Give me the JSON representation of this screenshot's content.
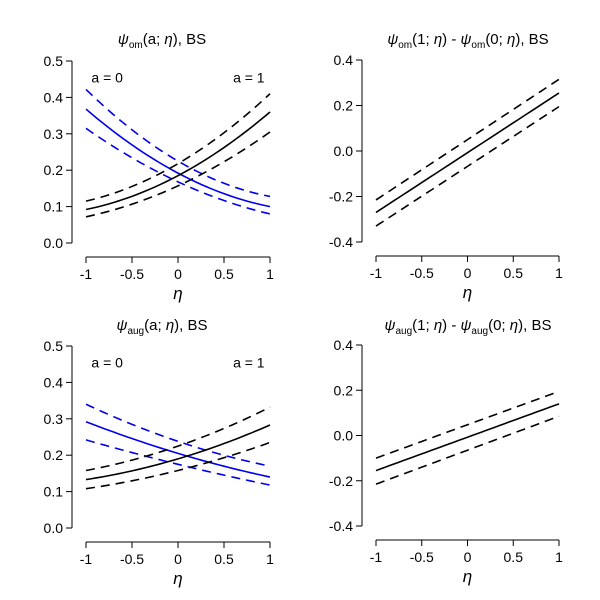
{
  "chart_data": [
    {
      "type": "line",
      "title": {
        "psi": "ψ",
        "sub": "om",
        "args": "(a; ",
        "eta": "η",
        "close": "), BS"
      },
      "xlabel": "η",
      "ylabel": "",
      "xlim": [
        -1,
        1
      ],
      "ylim": [
        0,
        0.5
      ],
      "xticks": [
        -1,
        -0.5,
        0,
        0.5,
        1
      ],
      "xtick_labels": [
        "-1",
        "-0.5",
        "0",
        "0.5",
        "1"
      ],
      "yticks": [
        0,
        0.1,
        0.2,
        0.3,
        0.4,
        0.5
      ],
      "ytick_labels": [
        "0.0",
        "0.1",
        "0.2",
        "0.3",
        "0.4",
        "0.5"
      ],
      "annotations": [
        {
          "text": "a = 0",
          "x": -0.77,
          "y": 0.455
        },
        {
          "text": "a = 1",
          "x": 0.77,
          "y": 0.455
        }
      ],
      "series": [
        {
          "name": "a=0 estimate",
          "color": "#0000ee",
          "style": "solid",
          "x": [
            -1,
            0,
            1
          ],
          "y": [
            0.368,
            0.192,
            0.1
          ]
        },
        {
          "name": "a=0 upper",
          "color": "#0000ee",
          "style": "dashed",
          "x": [
            -1,
            0,
            1
          ],
          "y": [
            0.422,
            0.225,
            0.128
          ]
        },
        {
          "name": "a=0 lower",
          "color": "#0000ee",
          "style": "dashed",
          "x": [
            -1,
            0,
            1
          ],
          "y": [
            0.315,
            0.168,
            0.08
          ]
        },
        {
          "name": "a=1 estimate",
          "color": "#000000",
          "style": "solid",
          "x": [
            -1,
            0,
            1
          ],
          "y": [
            0.092,
            0.185,
            0.36
          ]
        },
        {
          "name": "a=1 upper",
          "color": "#000000",
          "style": "dashed",
          "x": [
            -1,
            0,
            1
          ],
          "y": [
            0.115,
            0.218,
            0.41
          ]
        },
        {
          "name": "a=1 lower",
          "color": "#000000",
          "style": "dashed",
          "x": [
            -1,
            0,
            1
          ],
          "y": [
            0.072,
            0.157,
            0.305
          ]
        }
      ]
    },
    {
      "type": "line",
      "title": {
        "psi": "ψ",
        "sub": "om",
        "args": "(1; ",
        "eta": "η",
        "mid": ") - ",
        "psi2": "ψ",
        "sub2": "om",
        "args2": "(0; ",
        "eta2": "η",
        "close": "), BS"
      },
      "xlabel": "η",
      "ylabel": "",
      "xlim": [
        -1,
        1
      ],
      "ylim": [
        -0.4,
        0.4
      ],
      "xticks": [
        -1,
        -0.5,
        0,
        0.5,
        1
      ],
      "xtick_labels": [
        "-1",
        "-0.5",
        "0",
        "0.5",
        "1"
      ],
      "yticks": [
        -0.4,
        -0.2,
        0,
        0.2,
        0.4
      ],
      "ytick_labels": [
        "-0.4",
        "-0.2",
        "0.0",
        "0.2",
        "0.4"
      ],
      "annotations": [],
      "series": [
        {
          "name": "estimate",
          "color": "#000000",
          "style": "solid",
          "x": [
            -1,
            1
          ],
          "y": [
            -0.27,
            0.255
          ]
        },
        {
          "name": "upper",
          "color": "#000000",
          "style": "dashed",
          "x": [
            -1,
            1
          ],
          "y": [
            -0.215,
            0.315
          ]
        },
        {
          "name": "lower",
          "color": "#000000",
          "style": "dashed",
          "x": [
            -1,
            1
          ],
          "y": [
            -0.33,
            0.195
          ]
        }
      ]
    },
    {
      "type": "line",
      "title": {
        "psi": "ψ",
        "sub": "aug",
        "args": "(a; ",
        "eta": "η",
        "close": "), BS"
      },
      "xlabel": "η",
      "ylabel": "",
      "xlim": [
        -1,
        1
      ],
      "ylim": [
        0,
        0.5
      ],
      "xticks": [
        -1,
        -0.5,
        0,
        0.5,
        1
      ],
      "xtick_labels": [
        "-1",
        "-0.5",
        "0",
        "0.5",
        "1"
      ],
      "yticks": [
        0,
        0.1,
        0.2,
        0.3,
        0.4,
        0.5
      ],
      "ytick_labels": [
        "0.0",
        "0.1",
        "0.2",
        "0.3",
        "0.4",
        "0.5"
      ],
      "annotations": [
        {
          "text": "a = 0",
          "x": -0.77,
          "y": 0.455
        },
        {
          "text": "a = 1",
          "x": 0.77,
          "y": 0.455
        }
      ],
      "series": [
        {
          "name": "a=0 estimate",
          "color": "#0000ee",
          "style": "solid",
          "x": [
            -1,
            0,
            1
          ],
          "y": [
            0.292,
            0.205,
            0.14
          ]
        },
        {
          "name": "a=0 upper",
          "color": "#0000ee",
          "style": "dashed",
          "x": [
            -1,
            0,
            1
          ],
          "y": [
            0.34,
            0.238,
            0.17
          ]
        },
        {
          "name": "a=0 lower",
          "color": "#0000ee",
          "style": "dashed",
          "x": [
            -1,
            0,
            1
          ],
          "y": [
            0.242,
            0.175,
            0.118
          ]
        },
        {
          "name": "a=1 estimate",
          "color": "#000000",
          "style": "solid",
          "x": [
            -1,
            0,
            1
          ],
          "y": [
            0.133,
            0.19,
            0.283
          ]
        },
        {
          "name": "a=1 upper",
          "color": "#000000",
          "style": "dashed",
          "x": [
            -1,
            0,
            1
          ],
          "y": [
            0.158,
            0.225,
            0.332
          ]
        },
        {
          "name": "a=1 lower",
          "color": "#000000",
          "style": "dashed",
          "x": [
            -1,
            0,
            1
          ],
          "y": [
            0.108,
            0.158,
            0.235
          ]
        }
      ]
    },
    {
      "type": "line",
      "title": {
        "psi": "ψ",
        "sub": "aug",
        "args": "(1; ",
        "eta": "η",
        "mid": ") - ",
        "psi2": "ψ",
        "sub2": "aug",
        "args2": "(0; ",
        "eta2": "η",
        "close": "), BS"
      },
      "xlabel": "η",
      "ylabel": "",
      "xlim": [
        -1,
        1
      ],
      "ylim": [
        -0.4,
        0.4
      ],
      "xticks": [
        -1,
        -0.5,
        0,
        0.5,
        1
      ],
      "xtick_labels": [
        "-1",
        "-0.5",
        "0",
        "0.5",
        "1"
      ],
      "yticks": [
        -0.4,
        -0.2,
        0,
        0.2,
        0.4
      ],
      "ytick_labels": [
        "-0.4",
        "-0.2",
        "0.0",
        "0.2",
        "0.4"
      ],
      "annotations": [],
      "series": [
        {
          "name": "estimate",
          "color": "#000000",
          "style": "solid",
          "x": [
            -1,
            1
          ],
          "y": [
            -0.155,
            0.14
          ]
        },
        {
          "name": "upper",
          "color": "#000000",
          "style": "dashed",
          "x": [
            -1,
            1
          ],
          "y": [
            -0.1,
            0.195
          ]
        },
        {
          "name": "lower",
          "color": "#000000",
          "style": "dashed",
          "x": [
            -1,
            1
          ],
          "y": [
            -0.215,
            0.085
          ]
        }
      ]
    }
  ]
}
